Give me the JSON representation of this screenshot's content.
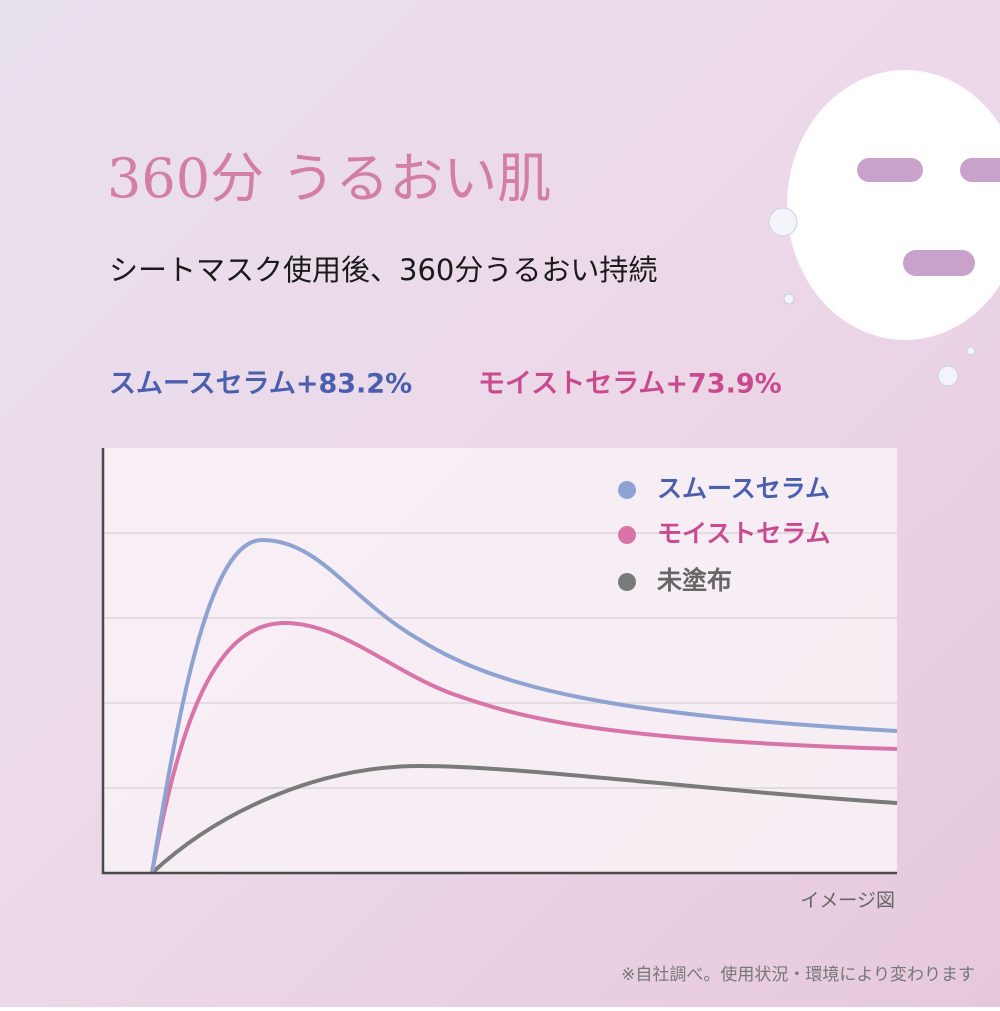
{
  "title": "360分 うるおい肌",
  "subtitle": "シートマスク使用後、360分うるおい持続",
  "claims": [
    "スムースセラム+83.2%",
    "モイストセラム+73.9%"
  ],
  "legend": [
    "スムースセラム",
    "モイストセラム",
    "未塗布"
  ],
  "caption": "イメージ図",
  "footnote": "※自社調べ。使用状況・環境により変わります"
}
